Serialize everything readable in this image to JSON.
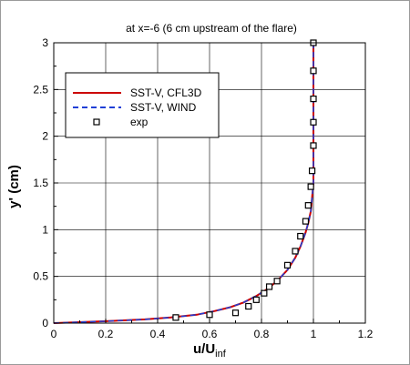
{
  "chart_data": {
    "type": "line",
    "title": "at x=-6 (6 cm upstream of the flare)",
    "xlabel": "u/U",
    "xlabel_sub": "inf",
    "ylabel": "y' (cm)",
    "xlim": [
      0,
      1.2
    ],
    "ylim": [
      0,
      3
    ],
    "xticks": [
      "0",
      "0.2",
      "0.4",
      "0.6",
      "0.8",
      "1",
      "1.2"
    ],
    "yticks": [
      "0",
      "0.5",
      "1",
      "1.5",
      "2",
      "2.5",
      "3"
    ],
    "grid": true,
    "legend_position": "top-left",
    "series": [
      {
        "name": "SST-V, CFL3D",
        "style": "solid",
        "color": "#cc0000",
        "x": [
          0,
          0.2,
          0.35,
          0.45,
          0.55,
          0.62,
          0.68,
          0.73,
          0.78,
          0.82,
          0.86,
          0.9,
          0.93,
          0.95,
          0.97,
          0.98,
          0.99,
          0.995,
          1.0,
          1.0,
          1.0,
          1.0,
          1.0,
          1.0
        ],
        "y": [
          0,
          0.02,
          0.04,
          0.06,
          0.09,
          0.13,
          0.17,
          0.22,
          0.29,
          0.36,
          0.45,
          0.57,
          0.7,
          0.82,
          0.97,
          1.07,
          1.2,
          1.35,
          1.5,
          1.8,
          2.1,
          2.5,
          2.8,
          3.0
        ]
      },
      {
        "name": "SST-V, WIND",
        "style": "dashed",
        "color": "#1f3fd6",
        "x": [
          0,
          0.2,
          0.35,
          0.45,
          0.55,
          0.62,
          0.68,
          0.73,
          0.78,
          0.82,
          0.86,
          0.9,
          0.93,
          0.95,
          0.97,
          0.98,
          0.99,
          0.995,
          1.0,
          1.0,
          1.0,
          1.0,
          1.0,
          1.0
        ],
        "y": [
          0,
          0.02,
          0.04,
          0.06,
          0.09,
          0.13,
          0.17,
          0.22,
          0.29,
          0.36,
          0.45,
          0.57,
          0.7,
          0.82,
          0.97,
          1.07,
          1.2,
          1.35,
          1.5,
          1.8,
          2.1,
          2.5,
          2.8,
          3.0
        ]
      },
      {
        "name": "exp",
        "style": "markers",
        "marker": "open-square",
        "color": "#000000",
        "x": [
          0.47,
          0.6,
          0.7,
          0.75,
          0.78,
          0.81,
          0.83,
          0.86,
          0.9,
          0.93,
          0.95,
          0.97,
          0.98,
          0.99,
          0.995,
          1.0,
          1.0,
          1.0,
          1.0,
          1.0
        ],
        "y": [
          0.06,
          0.09,
          0.11,
          0.18,
          0.25,
          0.32,
          0.39,
          0.45,
          0.62,
          0.77,
          0.93,
          1.09,
          1.26,
          1.46,
          1.63,
          1.9,
          2.15,
          2.4,
          2.7,
          3.0
        ]
      }
    ]
  }
}
